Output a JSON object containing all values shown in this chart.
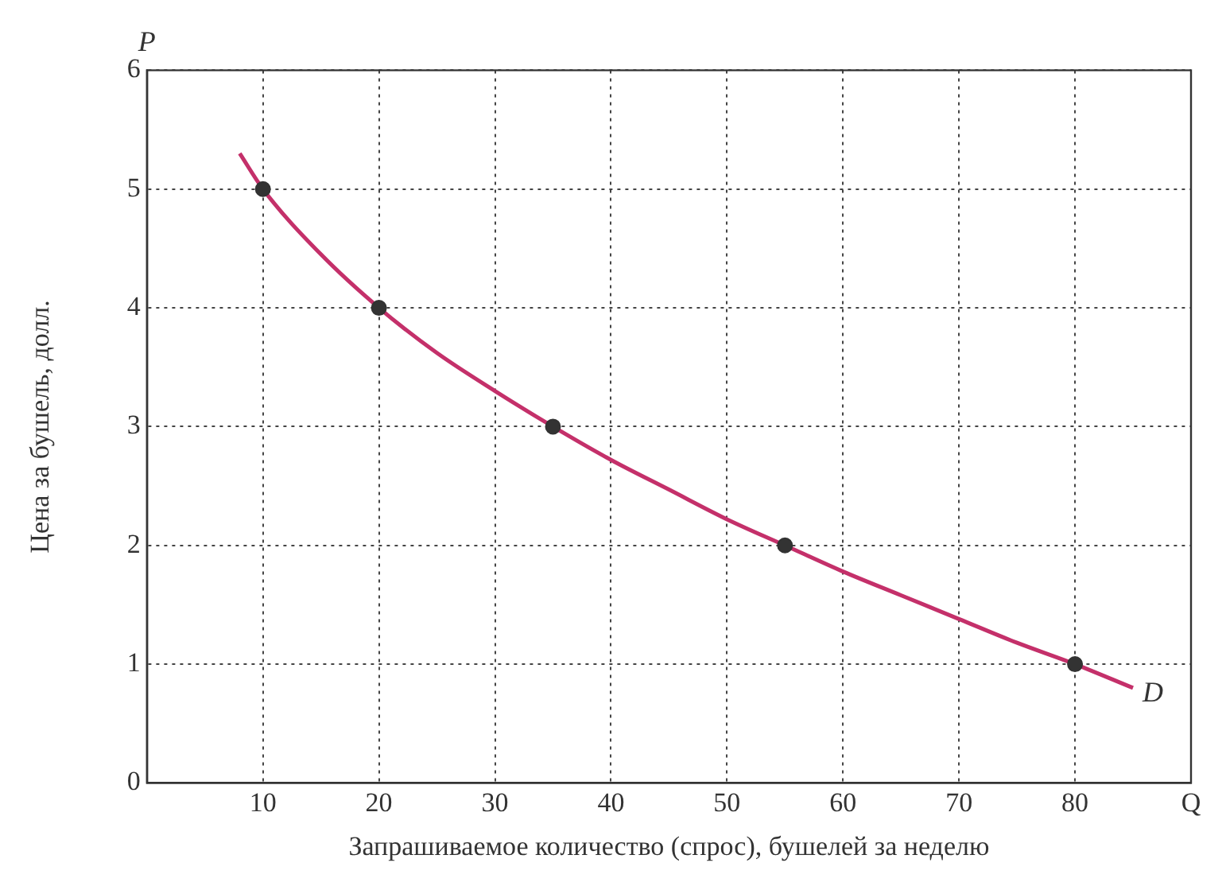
{
  "chart_data": {
    "type": "line",
    "xlabel": "Запрашиваемое количество (спрос), бушелей за неделю",
    "ylabel": "Цена за бушель, долл.",
    "series": [
      {
        "color": "#c4306a",
        "x": [
          8,
          10,
          15,
          20,
          25,
          30,
          35,
          40,
          45,
          50,
          55,
          60,
          65,
          70,
          75,
          80,
          85
        ],
        "values": [
          5.3,
          5,
          4.45,
          4,
          3.62,
          3.3,
          3,
          2.72,
          2.47,
          2.22,
          2,
          1.78,
          1.58,
          1.38,
          1.18,
          1,
          0.8
        ],
        "marker": "none"
      },
      {
        "type": "scatter",
        "color": "#333333",
        "x": [
          10,
          20,
          35,
          55,
          80
        ],
        "values": [
          5,
          4,
          3,
          2,
          1
        ],
        "marker": "circle"
      }
    ],
    "xlim": [
      0,
      90
    ],
    "xticks": [
      {
        "value": 0,
        "label": null
      },
      10,
      20,
      30,
      40,
      50,
      60,
      70,
      80,
      {
        "value": 90,
        "label": "Q"
      }
    ],
    "ylim": [
      0,
      6
    ],
    "yticks": [
      0,
      1,
      2,
      3,
      4,
      5,
      6
    ],
    "grid": true,
    "annotations": [
      "P",
      {
        "text": "D",
        "x": 85,
        "y": 0.8
      }
    ]
  }
}
